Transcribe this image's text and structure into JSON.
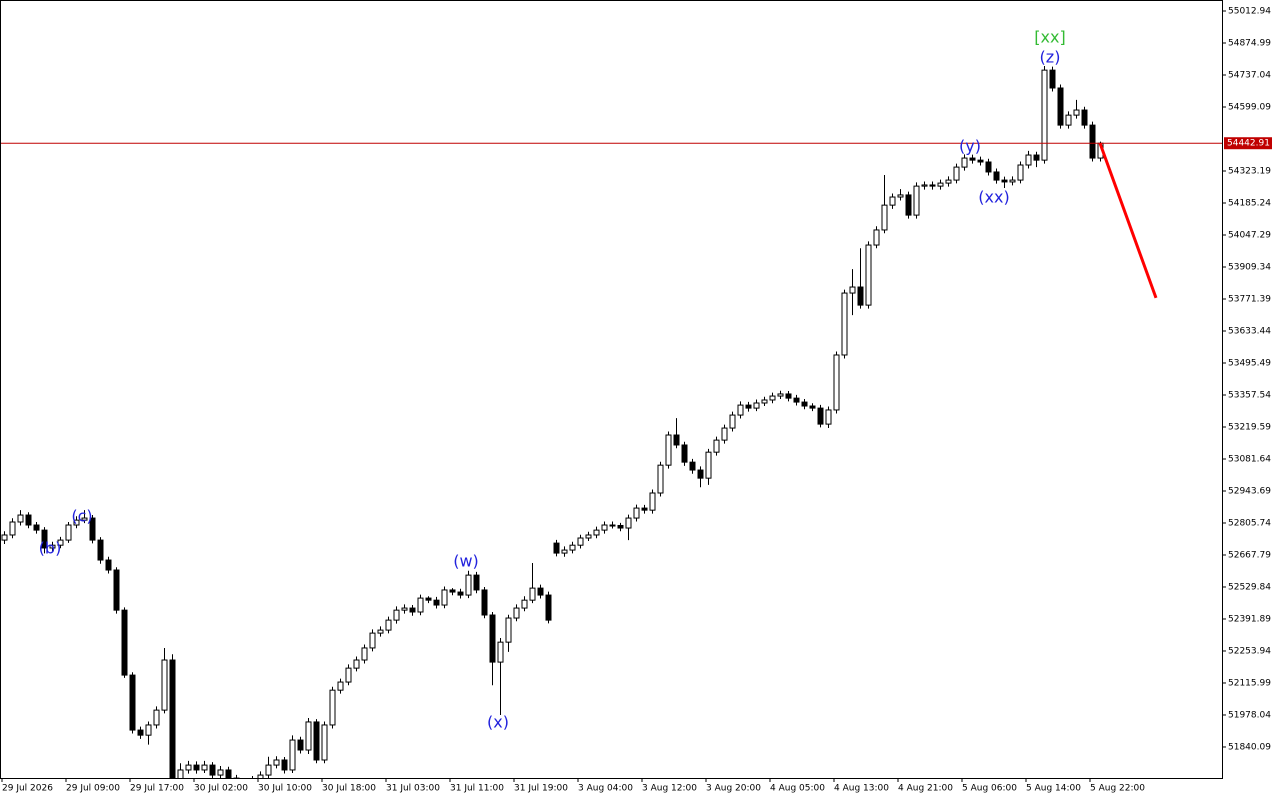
{
  "chart_data": {
    "type": "candlestick",
    "categories": [
      "29 Jul 2026",
      null,
      null,
      null,
      null,
      null,
      null,
      null,
      "29 Jul 09:00",
      null,
      null,
      null,
      null,
      null,
      null,
      null,
      "29 Jul 17:00",
      null,
      null,
      null,
      null,
      null,
      null,
      null,
      "30 Jul 02:00",
      null,
      null,
      null,
      null,
      null,
      null,
      null,
      "30 Jul 10:00",
      null,
      null,
      null,
      null,
      null,
      null,
      null,
      "30 Jul 18:00",
      null,
      null,
      null,
      null,
      null,
      null,
      null,
      "31 Jul 03:00",
      null,
      null,
      null,
      null,
      null,
      null,
      null,
      "31 Jul 11:00",
      null,
      null,
      null,
      null,
      null,
      null,
      null,
      "31 Jul 19:00",
      null,
      null,
      null,
      null,
      null,
      null,
      null,
      "3 Aug 04:00",
      null,
      null,
      null,
      null,
      null,
      null,
      null,
      "3 Aug 12:00",
      null,
      null,
      null,
      null,
      null,
      null,
      null,
      "3 Aug 20:00",
      null,
      null,
      null,
      null,
      null,
      null,
      null,
      "4 Aug 05:00",
      null,
      null,
      null,
      null,
      null,
      null,
      null,
      "4 Aug 13:00",
      null,
      null,
      null,
      null,
      null,
      null,
      null,
      "4 Aug 21:00",
      null,
      null,
      null,
      null,
      null,
      null,
      null,
      "5 Aug 06:00",
      null,
      null,
      null,
      null,
      null,
      null,
      null,
      "5 Aug 14:00",
      null,
      null,
      null,
      null,
      null,
      null,
      null,
      "5 Aug 22:00",
      null
    ],
    "open": [
      52732,
      52754,
      52810,
      52840,
      52797,
      52775,
      52698,
      52710,
      52732,
      52797,
      52818,
      52827,
      52732,
      52646,
      52603,
      52430,
      52150,
      51913,
      51891,
      51935,
      51999,
      52215,
      51654,
      51741,
      51762,
      51741,
      51762,
      51719,
      51741,
      51706,
      51676,
      51654,
      51698,
      51719,
      51762,
      51784,
      51741,
      51870,
      51827,
      51948,
      51784,
      51935,
      52085,
      52120,
      52180,
      52215,
      52267,
      52331,
      52344,
      52387,
      52430,
      52439,
      52422,
      52482,
      52473,
      52452,
      52517,
      52508,
      52495,
      52581,
      52517,
      52409,
      52206,
      52292,
      52396,
      52439,
      52473,
      52525,
      52495,
      52719,
      52676,
      52689,
      52710,
      52741,
      52754,
      52775,
      52797,
      52795,
      52784,
      52827,
      52870,
      52861,
      52935,
      53055,
      53185,
      53142,
      53068,
      53034,
      52999,
      53111,
      53163,
      53215,
      53271,
      53314,
      53301,
      53323,
      53336,
      53353,
      53362,
      53344,
      53327,
      53310,
      53301,
      53232,
      53293,
      53530,
      53797,
      53823,
      53745,
      54004,
      54069,
      54176,
      54211,
      54220,
      54133,
      54258,
      54263,
      54258,
      54271,
      54284,
      54340,
      54379,
      54370,
      54362,
      54319,
      54284,
      54276,
      54284,
      54349,
      54392,
      54370,
      54758,
      54681,
      54521,
      54564,
      54586,
      54521,
      54379
    ],
    "high": [
      52770,
      52826,
      52861,
      52852,
      52810,
      52788,
      52725,
      52746,
      52810,
      52835,
      52861,
      52840,
      52745,
      52660,
      52615,
      52442,
      52162,
      51928,
      51950,
      52015,
      52267,
      52240,
      51770,
      51780,
      51778,
      51780,
      51775,
      51758,
      51755,
      51720,
      51690,
      51715,
      51735,
      51798,
      51800,
      51797,
      51890,
      51884,
      51965,
      51960,
      51950,
      52100,
      52135,
      52196,
      52230,
      52282,
      52347,
      52360,
      52402,
      52446,
      52455,
      52452,
      52497,
      52490,
      52487,
      52532,
      52525,
      52522,
      52600,
      52595,
      52530,
      52422,
      52310,
      52410,
      52455,
      52490,
      52633,
      52540,
      52510,
      52733,
      52705,
      52725,
      52755,
      52768,
      52790,
      52812,
      52812,
      52806,
      52842,
      52885,
      52884,
      52950,
      53070,
      53200,
      53258,
      53156,
      53082,
      53050,
      53125,
      53178,
      53230,
      53286,
      53330,
      53328,
      53338,
      53350,
      53368,
      53376,
      53375,
      53358,
      53340,
      53322,
      53315,
      53308,
      53545,
      53812,
      53900,
      53990,
      54020,
      54085,
      54306,
      54226,
      54245,
      54234,
      54274,
      54278,
      54278,
      54286,
      54300,
      54355,
      54395,
      54394,
      54385,
      54376,
      54334,
      54299,
      54300,
      54364,
      54410,
      54406,
      54776,
      54773,
      54696,
      54580,
      54630,
      54600,
      54536,
      54450
    ],
    "low": [
      52715,
      52740,
      52795,
      52783,
      52760,
      52675,
      52684,
      52697,
      52720,
      52783,
      52805,
      52718,
      52630,
      52588,
      52415,
      52138,
      51898,
      51875,
      51850,
      51920,
      51985,
      51620,
      51640,
      51725,
      51725,
      51728,
      51700,
      51700,
      51690,
      51660,
      51640,
      51640,
      51685,
      51705,
      51748,
      51726,
      51728,
      51812,
      51810,
      51770,
      51770,
      51920,
      52070,
      52106,
      52166,
      52200,
      52252,
      52316,
      52330,
      52372,
      52415,
      52406,
      52408,
      52460,
      52437,
      52438,
      52494,
      52480,
      52482,
      52503,
      52395,
      52106,
      51978,
      52250,
      52382,
      52425,
      52460,
      52480,
      52373,
      52662,
      52660,
      52675,
      52696,
      52728,
      52740,
      52760,
      52782,
      52770,
      52732,
      52812,
      52846,
      52846,
      52920,
      53040,
      53128,
      53052,
      53018,
      52960,
      52970,
      53096,
      53148,
      53200,
      53256,
      53286,
      53288,
      53310,
      53322,
      53340,
      53330,
      53312,
      53296,
      53288,
      53218,
      53215,
      53278,
      53515,
      53702,
      53730,
      53730,
      53990,
      54055,
      54160,
      54196,
      54118,
      54118,
      54243,
      54243,
      54243,
      54256,
      54270,
      54325,
      54355,
      54347,
      54304,
      54269,
      54250,
      54261,
      54270,
      54334,
      54340,
      54355,
      54666,
      54506,
      54506,
      54549,
      54506,
      54364,
      54364
    ],
    "close": [
      52754,
      52810,
      52840,
      52797,
      52775,
      52698,
      52710,
      52732,
      52797,
      52818,
      52827,
      52732,
      52646,
      52603,
      52430,
      52150,
      51913,
      51891,
      51935,
      51999,
      52215,
      51654,
      51741,
      51762,
      51741,
      51762,
      51719,
      51741,
      51706,
      51676,
      51654,
      51698,
      51719,
      51762,
      51784,
      51741,
      51870,
      51827,
      51948,
      51784,
      51935,
      52085,
      52120,
      52180,
      52215,
      52267,
      52331,
      52344,
      52387,
      52430,
      52439,
      52422,
      52482,
      52473,
      52452,
      52517,
      52508,
      52495,
      52581,
      52517,
      52409,
      52206,
      52292,
      52396,
      52439,
      52473,
      52525,
      52495,
      52387,
      52676,
      52689,
      52710,
      52741,
      52754,
      52775,
      52797,
      52795,
      52784,
      52827,
      52870,
      52861,
      52935,
      53055,
      53185,
      53142,
      53068,
      53034,
      52999,
      53111,
      53163,
      53215,
      53271,
      53314,
      53301,
      53323,
      53336,
      53353,
      53362,
      53344,
      53327,
      53310,
      53301,
      53232,
      53293,
      53530,
      53797,
      53823,
      53745,
      54004,
      54069,
      54176,
      54211,
      54220,
      54133,
      54258,
      54263,
      54258,
      54271,
      54284,
      54340,
      54379,
      54370,
      54362,
      54319,
      54284,
      54276,
      54284,
      54349,
      54392,
      54370,
      54758,
      54681,
      54521,
      54564,
      54586,
      54521,
      54379,
      54442.91
    ],
    "bull_color": "#ffffff",
    "bear_color": "#000000",
    "ylim": [
      51706.36,
      55060.36
    ],
    "yticks": [
      55012.94,
      54874.99,
      54737.04,
      54599.09,
      54323.19,
      54185.24,
      54047.29,
      53909.34,
      53771.39,
      53633.44,
      53495.49,
      53357.54,
      53219.59,
      53081.64,
      52943.69,
      52805.74,
      52667.79,
      52529.84,
      52391.89,
      52253.94,
      52115.99,
      51978.04,
      51840.09
    ],
    "current_price": 54442.91,
    "current_price_color": "#c00000",
    "forecast": {
      "x": [
        137,
        144
      ],
      "values": [
        54442.91,
        53776
      ],
      "color": "#ff0000"
    },
    "annotations": [
      {
        "text": "(b)",
        "color": "#2222dd"
      },
      {
        "text": "(c)",
        "color": "#2222dd"
      },
      {
        "text": "(w)",
        "color": "#2222dd"
      },
      {
        "text": "(x)",
        "color": "#2222dd"
      },
      {
        "text": "(y)",
        "color": "#2222dd"
      },
      {
        "text": "(xx)",
        "color": "#2222dd"
      },
      {
        "text": "(z)",
        "color": "#2222dd"
      },
      {
        "text": "[xx]",
        "color": "#33bb33"
      }
    ]
  }
}
